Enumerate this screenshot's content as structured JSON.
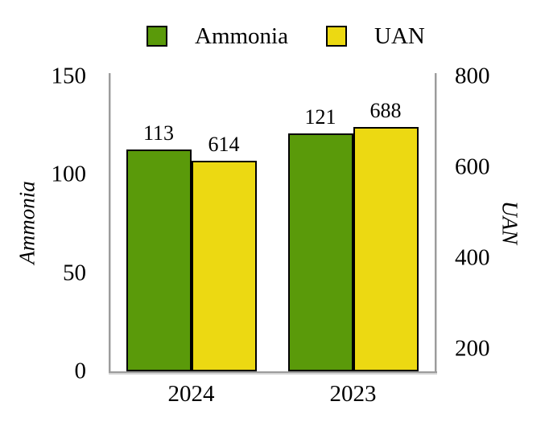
{
  "chart_data": {
    "type": "bar",
    "title": "",
    "categories": [
      "2024",
      "2023"
    ],
    "series": [
      {
        "name": "Ammonia",
        "axis": "left",
        "color": "#5a9a0a",
        "values": [
          113,
          121
        ]
      },
      {
        "name": "UAN",
        "axis": "right",
        "color": "#ecd912",
        "values": [
          614,
          688
        ]
      }
    ],
    "axes": {
      "left": {
        "label": "Ammonia",
        "min": 0,
        "max": 800,
        "display_max": 150,
        "ticks": [
          0,
          50,
          100,
          150
        ]
      },
      "right": {
        "label": "UAN",
        "min": 150,
        "max": 800,
        "ticks": [
          200,
          400,
          600,
          800
        ]
      }
    },
    "legend_position": "top",
    "grid": false,
    "data_labels": true,
    "bar_border_color": "#000000",
    "axis_line_color": "#9c9c9c"
  }
}
